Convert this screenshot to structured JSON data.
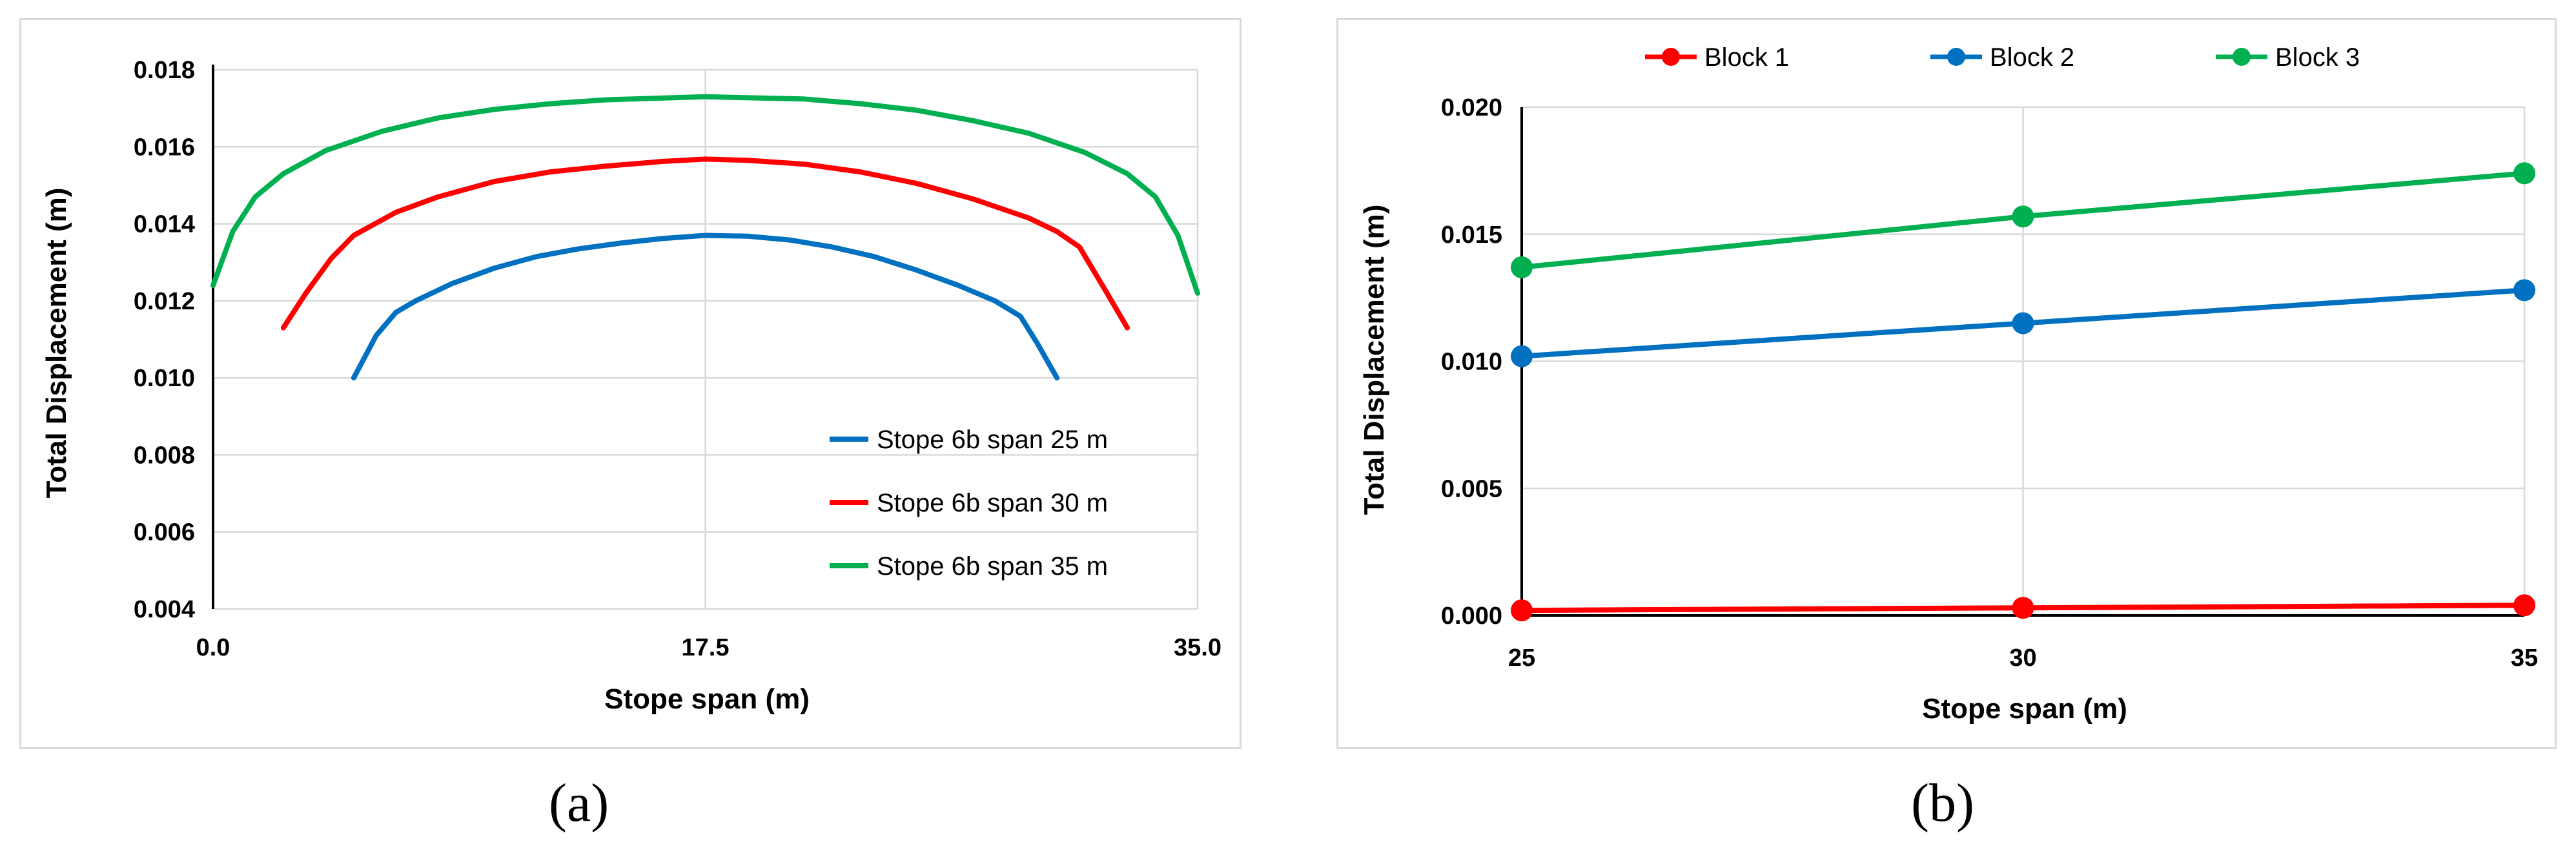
{
  "panel_labels": {
    "a": "(a)",
    "b": "(b)"
  },
  "colors": {
    "red": "#ff0000",
    "blue": "#0070c0",
    "green": "#00b050"
  },
  "chart_data": [
    {
      "type": "line",
      "panel": "a",
      "title": "",
      "xlabel": "Stope span (m)",
      "ylabel": "Total Displacement (m)",
      "xlim": [
        0,
        35
      ],
      "ylim": [
        0.004,
        0.018
      ],
      "x_ticks": [
        "0.0",
        "17.5",
        "35.0"
      ],
      "y_ticks": [
        "0.004",
        "0.006",
        "0.008",
        "0.010",
        "0.012",
        "0.014",
        "0.016",
        "0.018"
      ],
      "grid": true,
      "legend_position": "bottom-right",
      "series": [
        {
          "name": "Stope 6b span 25 m",
          "color": "#0070c0",
          "x": [
            5.0,
            5.8,
            6.5,
            7.2,
            8.5,
            10,
            11.5,
            13,
            14.5,
            16,
            17.5,
            19,
            20.5,
            22,
            23.5,
            25,
            26.5,
            27.8,
            28.7,
            29.3,
            30.0
          ],
          "y": [
            0.01,
            0.0111,
            0.0117,
            0.012,
            0.01245,
            0.01285,
            0.01315,
            0.01335,
            0.0135,
            0.01362,
            0.0137,
            0.01368,
            0.01358,
            0.0134,
            0.01315,
            0.0128,
            0.0124,
            0.012,
            0.0116,
            0.0109,
            0.01
          ]
        },
        {
          "name": "Stope 6b span 30 m",
          "color": "#ff0000",
          "x": [
            2.5,
            3.3,
            4.2,
            5.0,
            6.5,
            8,
            10,
            12,
            14,
            16,
            17.5,
            19,
            21,
            23,
            25,
            27,
            29,
            30.0,
            30.8,
            31.7,
            32.5
          ],
          "y": [
            0.0113,
            0.0122,
            0.0131,
            0.0137,
            0.0143,
            0.0147,
            0.0151,
            0.01535,
            0.0155,
            0.01562,
            0.01568,
            0.01565,
            0.01555,
            0.01535,
            0.01505,
            0.01465,
            0.01415,
            0.0138,
            0.0134,
            0.0123,
            0.0113
          ]
        },
        {
          "name": "Stope 6b span 35 m",
          "color": "#00b050",
          "x": [
            0.0,
            0.7,
            1.5,
            2.5,
            4,
            6,
            8,
            10,
            12,
            14,
            17.5,
            21,
            23,
            25,
            27,
            29,
            31,
            32.5,
            33.5,
            34.3,
            35.0
          ],
          "y": [
            0.0124,
            0.0138,
            0.0147,
            0.0153,
            0.0159,
            0.0164,
            0.01675,
            0.01697,
            0.01712,
            0.01722,
            0.0173,
            0.01724,
            0.01712,
            0.01695,
            0.01668,
            0.01635,
            0.01585,
            0.0153,
            0.0147,
            0.0137,
            0.0122
          ]
        }
      ]
    },
    {
      "type": "line",
      "panel": "b",
      "title": "",
      "xlabel": "Stope span (m)",
      "ylabel": "Total Displacement (m)",
      "xlim": [
        25,
        35
      ],
      "ylim": [
        0,
        0.02
      ],
      "categories": [
        25,
        30,
        35
      ],
      "x_ticks": [
        "25",
        "30",
        "35"
      ],
      "y_ticks": [
        "0.000",
        "0.005",
        "0.010",
        "0.015",
        "0.020"
      ],
      "grid": true,
      "legend_position": "top",
      "series": [
        {
          "name": "Block 1",
          "color": "#ff0000",
          "values": [
            0.0002,
            0.0003,
            0.0004
          ]
        },
        {
          "name": "Block 2",
          "color": "#0070c0",
          "values": [
            0.0102,
            0.0115,
            0.0128
          ]
        },
        {
          "name": "Block 3",
          "color": "#00b050",
          "values": [
            0.0137,
            0.0157,
            0.0174
          ]
        }
      ]
    }
  ]
}
